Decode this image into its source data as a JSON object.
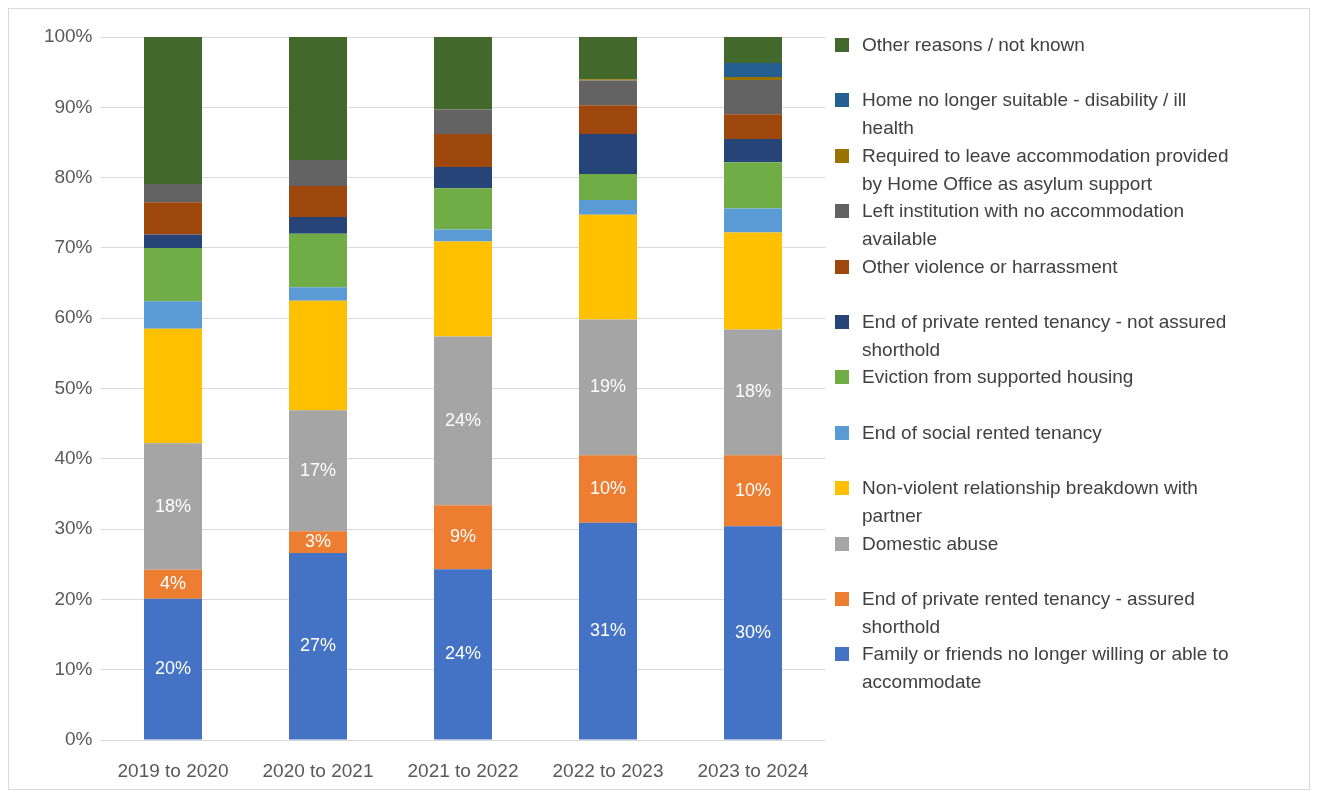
{
  "chart_data": {
    "type": "bar",
    "stacked": true,
    "categories": [
      "2019 to 2020",
      "2020 to 2021",
      "2021 to 2022",
      "2022 to 2023",
      "2023 to 2024"
    ],
    "series": [
      {
        "name": "Family or friends no longer willing or able to accommodate",
        "color": "#4472c4",
        "values": [
          20.1,
          26.6,
          24.3,
          30.9,
          30.4
        ],
        "value_labels": [
          "20%",
          "27%",
          "24%",
          "31%",
          "30%"
        ]
      },
      {
        "name": "End of private rented tenancy - assured shorthold",
        "color": "#ed7d31",
        "values": [
          4.1,
          3.1,
          9.1,
          9.6,
          10.1
        ],
        "value_labels": [
          "4%",
          "3%",
          "9%",
          "10%",
          "10%"
        ]
      },
      {
        "name": "Domestic abuse",
        "color": "#a5a5a5",
        "values": [
          18.0,
          17.2,
          24.0,
          19.3,
          17.9
        ],
        "value_labels": [
          "18%",
          "17%",
          "24%",
          "19%",
          "18%"
        ]
      },
      {
        "name": "Non-violent relationship breakdown with partner",
        "color": "#ffc000",
        "values": [
          16.3,
          15.6,
          13.5,
          14.9,
          13.8
        ]
      },
      {
        "name": "End of social rented tenancy",
        "color": "#5b9bd5",
        "values": [
          3.9,
          1.9,
          1.7,
          2.1,
          3.4
        ]
      },
      {
        "name": "Eviction from supported housing",
        "color": "#70ad47",
        "values": [
          7.6,
          7.6,
          5.9,
          3.7,
          6.6
        ]
      },
      {
        "name": "End of private rented tenancy - not assured shorthold",
        "color": "#264478",
        "values": [
          1.9,
          2.4,
          3.0,
          5.7,
          3.3
        ]
      },
      {
        "name": "Other violence or harrassment",
        "color": "#9e480e",
        "values": [
          4.6,
          4.4,
          4.7,
          4.1,
          3.5
        ]
      },
      {
        "name": "Left institution with no accommodation available",
        "color": "#636363",
        "values": [
          2.6,
          3.7,
          3.5,
          3.5,
          4.9
        ]
      },
      {
        "name": "Required to leave accommodation provided by Home Office as asylum support",
        "color": "#997300",
        "values": [
          0,
          0,
          0,
          0.2,
          0.4
        ]
      },
      {
        "name": "Home no longer suitable - disability / ill health",
        "color": "#255e91",
        "values": [
          0,
          0,
          0,
          0,
          2.0
        ]
      },
      {
        "name": "Other reasons / not known",
        "color": "#43682b",
        "values": [
          20.9,
          17.5,
          10.3,
          6.0,
          3.7
        ]
      }
    ],
    "ylim": [
      0,
      100
    ],
    "yticks": [
      {
        "value": 0,
        "label": "0%"
      },
      {
        "value": 10,
        "label": "10%"
      },
      {
        "value": 20,
        "label": "20%"
      },
      {
        "value": 30,
        "label": "30%"
      },
      {
        "value": 40,
        "label": "40%"
      },
      {
        "value": 50,
        "label": "50%"
      },
      {
        "value": 60,
        "label": "60%"
      },
      {
        "value": 70,
        "label": "70%"
      },
      {
        "value": 80,
        "label": "80%"
      },
      {
        "value": 90,
        "label": "90%"
      },
      {
        "value": 100,
        "label": "100%"
      }
    ],
    "grid": "y",
    "legend": "right"
  }
}
